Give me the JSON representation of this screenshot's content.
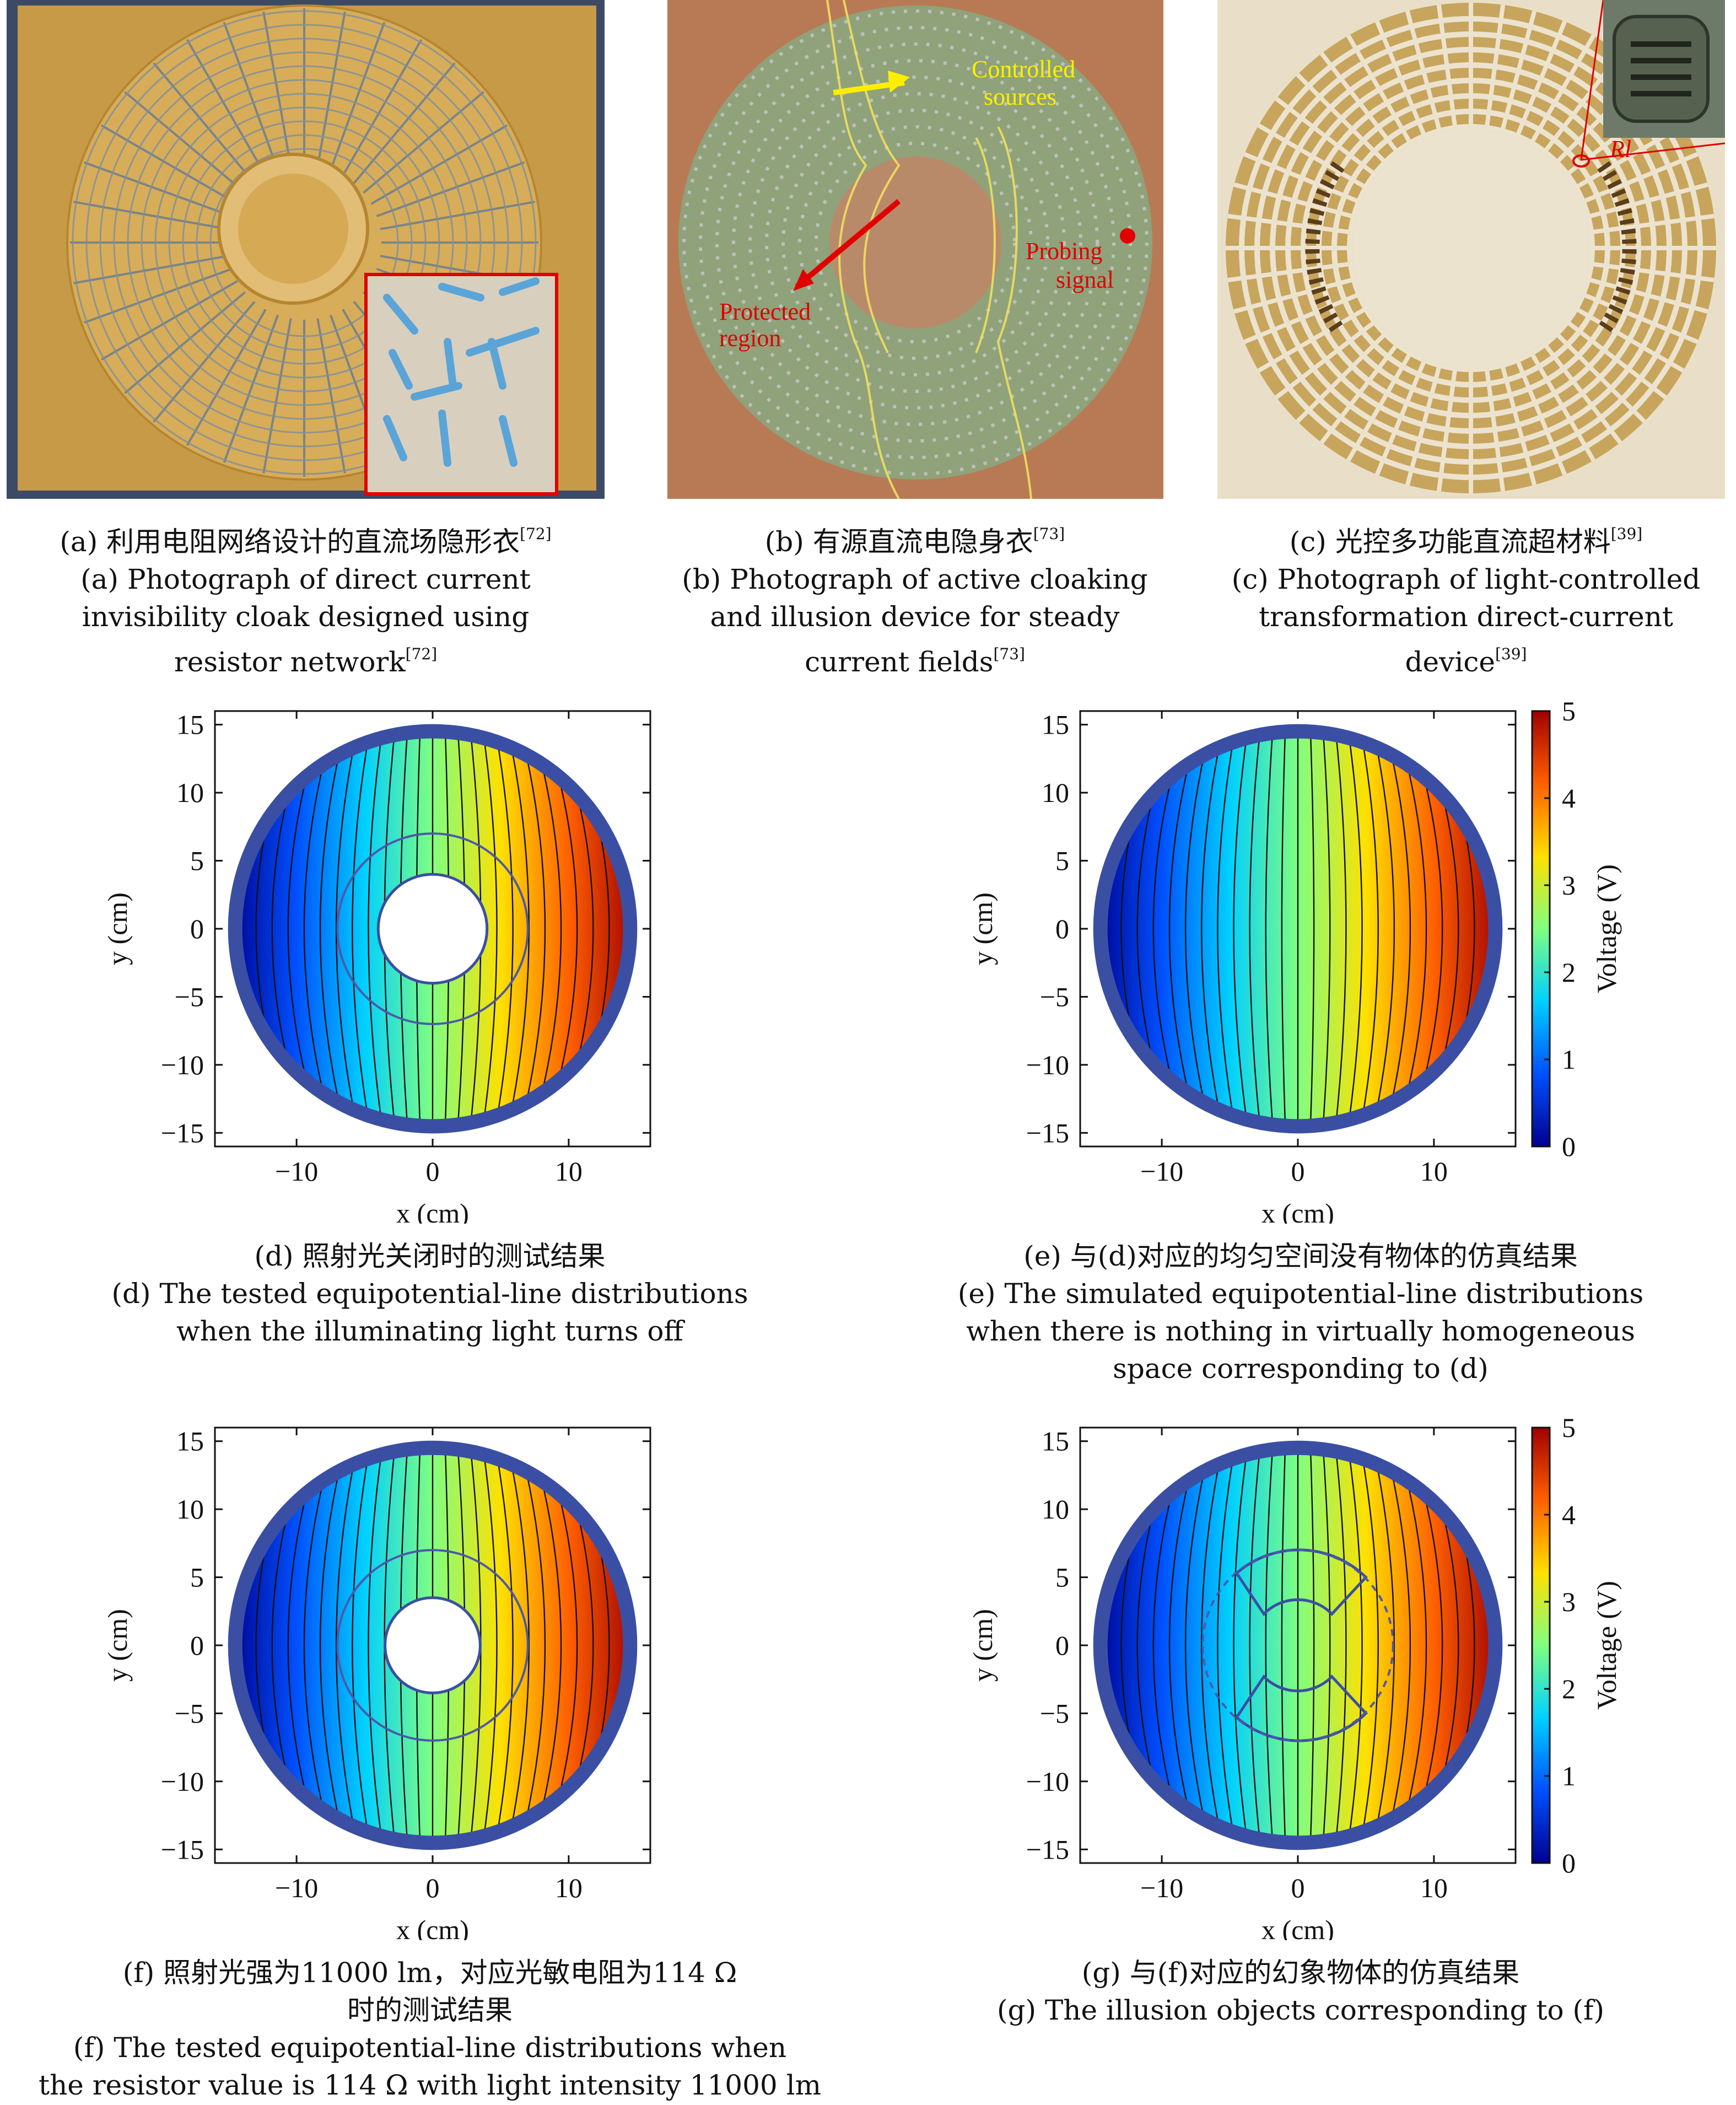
{
  "panels": {
    "a": {
      "cap_cn": "(a) 利用电阻网络设计的直流场隐形衣",
      "cap_cn_ref": "[72]",
      "cap_en": [
        "(a) Photograph of direct current",
        "invisibility cloak designed using",
        "resistor network"
      ],
      "cap_en_ref": "[72]"
    },
    "b": {
      "cap_cn": "(b) 有源直流电隐身衣",
      "cap_cn_ref": "[73]",
      "cap_en": [
        "(b) Photograph of active cloaking",
        "and illusion device for steady",
        "current fields"
      ],
      "cap_en_ref": "[73]",
      "labels": {
        "controlled": [
          "Controlled",
          "sources"
        ],
        "protected": [
          "Protected",
          "region"
        ],
        "probing": [
          "Probing",
          "signal"
        ]
      }
    },
    "c": {
      "cap_cn": "(c) 光控多功能直流超材料",
      "cap_cn_ref": "[39]",
      "cap_en": [
        "(c) Photograph of light-controlled",
        "transformation direct-current",
        "device"
      ],
      "cap_en_ref": "[39]",
      "inset_label": "Rl"
    },
    "d": {
      "cap": [
        "(d) 照射光关闭时的测试结果",
        "(d) The tested equipotential-line distributions",
        "when the illuminating light turns off"
      ]
    },
    "e": {
      "cap": [
        "(e) 与(d)对应的均匀空间没有物体的仿真结果",
        "(e) The simulated equipotential-line distributions",
        "when there is nothing in virtually homogeneous",
        "space corresponding to (d)"
      ]
    },
    "f": {
      "cap": [
        "(f) 照射光强为11000 lm，对应光敏电阻为114 Ω",
        "时的测试结果",
        "(f) The tested equipotential-line distributions when",
        "the resistor value is 114 Ω with light intensity 11000 lm"
      ]
    },
    "g": {
      "cap": [
        "(g) 与(f)对应的幻象物体的仿真结果",
        "(g) The illusion objects corresponding to (f)"
      ]
    }
  },
  "axes": {
    "xlabel": "x (cm)",
    "ylabel": "y (cm)",
    "colorbar_label": "Voltage (V)"
  },
  "chart_data": [
    {
      "id": "d",
      "type": "heatmap",
      "xlim": [
        -16,
        16
      ],
      "ylim": [
        -16,
        16
      ],
      "xticks": [
        -10,
        0,
        10
      ],
      "yticks": [
        -15,
        -10,
        -5,
        0,
        5,
        10,
        15
      ],
      "device_outer_radius": 15,
      "cloak_outer_radius": 7,
      "cloak_inner_radius": 4,
      "colorbar": false
    },
    {
      "id": "e",
      "type": "heatmap",
      "xlim": [
        -16,
        16
      ],
      "ylim": [
        -16,
        16
      ],
      "xticks": [
        -10,
        0,
        10
      ],
      "yticks": [
        -15,
        -10,
        -5,
        0,
        5,
        10,
        15
      ],
      "device_outer_radius": 15,
      "colorbar": true,
      "colorbar_ticks": [
        0,
        1,
        2,
        3,
        4,
        5
      ],
      "clim": [
        0,
        5
      ]
    },
    {
      "id": "f",
      "type": "heatmap",
      "xlim": [
        -16,
        16
      ],
      "ylim": [
        -16,
        16
      ],
      "xticks": [
        -10,
        0,
        10
      ],
      "yticks": [
        -15,
        -10,
        -5,
        0,
        5,
        10,
        15
      ],
      "device_outer_radius": 15,
      "cloak_outer_radius": 7,
      "cloak_inner_radius": 3.5,
      "colorbar": false
    },
    {
      "id": "g",
      "type": "heatmap",
      "xlim": [
        -16,
        16
      ],
      "ylim": [
        -16,
        16
      ],
      "xticks": [
        -10,
        0,
        10
      ],
      "yticks": [
        -15,
        -10,
        -5,
        0,
        5,
        10,
        15
      ],
      "device_outer_radius": 15,
      "colorbar": true,
      "colorbar_ticks": [
        0,
        1,
        2,
        3,
        4,
        5
      ],
      "clim": [
        0,
        5
      ]
    }
  ],
  "colors": {
    "ring": "#3a4fa3",
    "jet": [
      "#00008f",
      "#0050ff",
      "#00d0ff",
      "#80ff80",
      "#ffe000",
      "#ff6000",
      "#a00000"
    ]
  }
}
